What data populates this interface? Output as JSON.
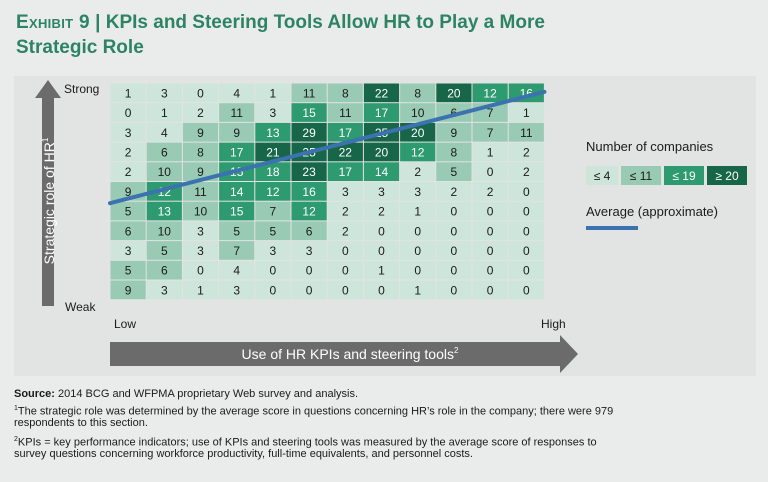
{
  "title": {
    "prefix": "Exhibit 9",
    "separator": "|",
    "text": "KPIs and Steering Tools Allow HR to Play a More Strategic Role"
  },
  "chart_data": {
    "type": "heatmap",
    "ylabel": "Strategic role of HR",
    "ylabel_sup": "1",
    "y_top_label": "Strong",
    "y_bottom_label": "Weak",
    "xlabel": "Use of HR KPIs and steering tools",
    "xlabel_sup": "2",
    "x_left_label": "Low",
    "x_right_label": "High",
    "rows": [
      [
        1,
        3,
        0,
        4,
        1,
        11,
        8,
        22,
        8,
        20,
        12,
        16
      ],
      [
        0,
        1,
        2,
        11,
        3,
        15,
        11,
        17,
        10,
        6,
        7,
        1
      ],
      [
        3,
        4,
        9,
        9,
        13,
        29,
        17,
        25,
        20,
        9,
        7,
        11
      ],
      [
        2,
        6,
        8,
        17,
        21,
        25,
        22,
        20,
        12,
        8,
        1,
        2
      ],
      [
        2,
        10,
        9,
        15,
        18,
        23,
        17,
        14,
        2,
        5,
        0,
        2
      ],
      [
        9,
        12,
        11,
        14,
        12,
        16,
        3,
        3,
        3,
        2,
        2,
        0
      ],
      [
        5,
        13,
        10,
        15,
        7,
        12,
        2,
        2,
        1,
        0,
        0,
        0
      ],
      [
        6,
        10,
        3,
        5,
        5,
        6,
        2,
        0,
        0,
        0,
        0,
        0
      ],
      [
        3,
        5,
        3,
        7,
        3,
        3,
        0,
        0,
        0,
        0,
        0,
        0
      ],
      [
        5,
        6,
        0,
        4,
        0,
        0,
        0,
        1,
        0,
        0,
        0,
        0
      ],
      [
        9,
        3,
        1,
        3,
        0,
        0,
        0,
        0,
        1,
        0,
        0,
        0
      ]
    ],
    "bins": [
      {
        "label": "≤ 4",
        "max": 4,
        "color": "#cde5da"
      },
      {
        "label": "≤ 11",
        "max": 11,
        "color": "#99cbb4"
      },
      {
        "label": "≤ 19",
        "max": 19,
        "color": "#2e9a6f"
      },
      {
        "label": "≥ 20",
        "max": 999,
        "color": "#17664a"
      }
    ],
    "legend_title": "Number of companies",
    "average_label": "Average (approximate)",
    "average_line": {
      "from": [
        0,
        6.1
      ],
      "to": [
        12,
        0.45
      ],
      "color": "#3c72b0"
    }
  },
  "footnotes": {
    "source_label": "Source:",
    "source_text": "2014 BCG and WFPMA proprietary Web survey and analysis.",
    "note1_mark": "1",
    "note1": "The strategic role was determined by the average score in questions concerning HR’s role in the company; there were 979",
    "note1_cont": "respondents to this section.",
    "note2_mark": "2",
    "note2": "KPIs = key performance indicators; use of KPIs and steering tools was measured by the average score of responses to",
    "note2_cont": "survey questions concerning workforce productivity, full-time equivalents, and personnel costs."
  }
}
